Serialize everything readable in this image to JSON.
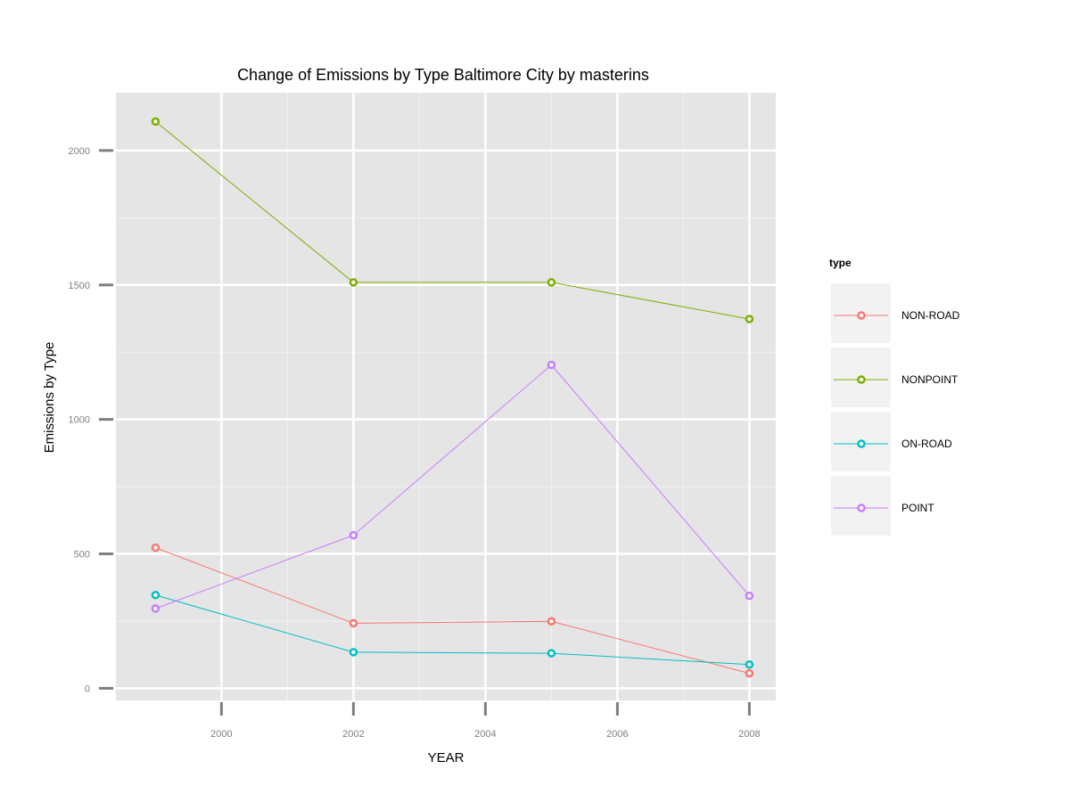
{
  "chart_data": {
    "type": "line",
    "title": "Change of Emissions by Type Baltimore City by masterins",
    "xlabel": "YEAR",
    "ylabel": "Emissions by Type",
    "x": [
      1999,
      2002,
      2005,
      2008
    ],
    "xlim": [
      1998.4,
      2008.4
    ],
    "ylim": [
      -45,
      2215
    ],
    "x_ticks": [
      2000,
      2002,
      2004,
      2006,
      2008
    ],
    "y_ticks": [
      0,
      500,
      1000,
      1500,
      2000
    ],
    "grid": true,
    "legend_title": "type",
    "legend_position": "right",
    "series": [
      {
        "name": "NON-ROAD",
        "color": "#F8766D",
        "values": [
          522.9,
          242.0,
          248.9,
          55.8
        ]
      },
      {
        "name": "NONPOINT",
        "color": "#7CAE00",
        "values": [
          2107.6,
          1509.5,
          1509.5,
          1373.2
        ]
      },
      {
        "name": "ON-ROAD",
        "color": "#00BFC4",
        "values": [
          346.8,
          134.3,
          130.4,
          88.3
        ]
      },
      {
        "name": "POINT",
        "color": "#C77CFF",
        "values": [
          296.8,
          569.3,
          1202.5,
          344.0
        ]
      }
    ]
  }
}
